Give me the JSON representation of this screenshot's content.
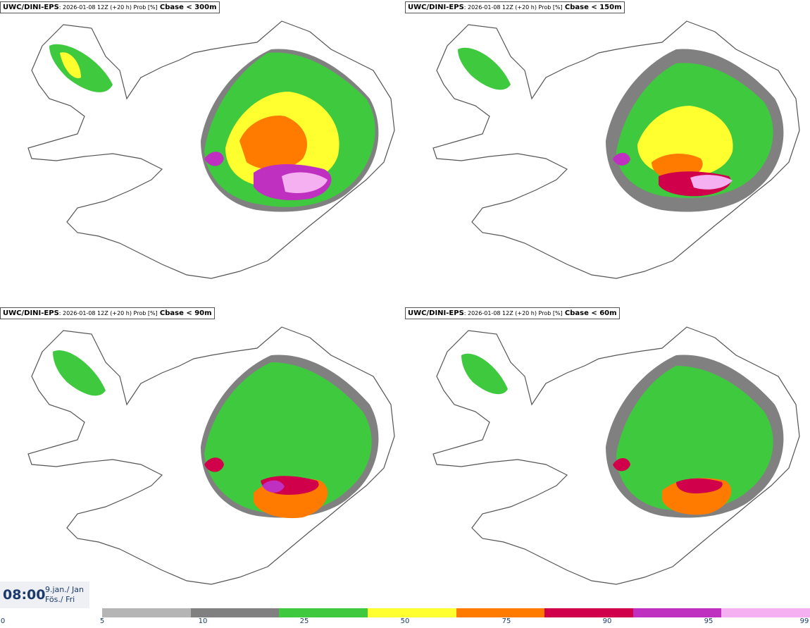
{
  "panels": [
    {
      "model": "UWC/DINI-EPS",
      "meta": ": 2026-01-08 12Z (+20 h) Prob [%]",
      "param": "Cbase < 300m"
    },
    {
      "model": "UWC/DINI-EPS",
      "meta": ": 2026-01-08 12Z (+20 h) Prob [%]",
      "param": "Cbase < 150m"
    },
    {
      "model": "UWC/DINI-EPS",
      "meta": ": 2026-01-08 12Z (+20 h) Prob [%]",
      "param": "Cbase < 90m"
    },
    {
      "model": "UWC/DINI-EPS",
      "meta": ": 2026-01-08 12Z (+20 h) Prob [%]",
      "param": "Cbase < 60m"
    }
  ],
  "valid_time": {
    "time": "08:00",
    "date_line1": "9.jan./ Jan",
    "date_line2": "Fös./ Fri"
  },
  "colorbar": {
    "ticks": [
      "0",
      "5",
      "10",
      "25",
      "50",
      "75",
      "90",
      "95",
      "99"
    ],
    "colors": [
      "#b5b5b5",
      "#808080",
      "#3fc93f",
      "#ffff30",
      "#ff7b00",
      "#d0004a",
      "#c030c0",
      "#f4b0f0"
    ]
  },
  "map_colors": {
    "coast": "#555555",
    "land": "#ffffff",
    "p5": "#b5b5b5",
    "p10": "#808080",
    "p25": "#3fc93f",
    "p50": "#ffff30",
    "p75": "#ff7b00",
    "p90": "#d0004a",
    "p95": "#c030c0",
    "p99": "#f4b0f0"
  }
}
